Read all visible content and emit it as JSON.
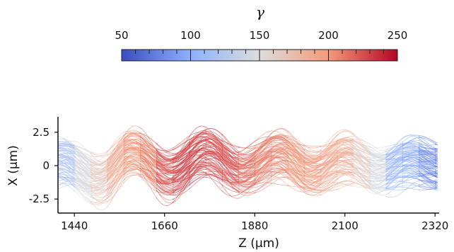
{
  "chart_data": {
    "type": "line",
    "title": "",
    "xlabel": "Z (μm)",
    "ylabel": "X (μm)",
    "xlim": [
      1400,
      2330
    ],
    "ylim": [
      -3.5,
      3.5
    ],
    "x_ticks": [
      1440,
      1660,
      1880,
      2100,
      2320
    ],
    "x_tick_labels": [
      "1440",
      "1660",
      "1880",
      "2100",
      "2320"
    ],
    "y_ticks": [
      2.5,
      0,
      -2.5
    ],
    "y_tick_labels": [
      "2.5",
      "0",
      "-2.5"
    ],
    "grid": false,
    "colorbar": {
      "label": "γ",
      "min": 50,
      "max": 250,
      "ticks": [
        50,
        100,
        150,
        200,
        250
      ],
      "tick_labels": [
        "50",
        "100",
        "150",
        "200",
        "250"
      ],
      "colormap": [
        "#3b4cc0",
        "#8db0fe",
        "#dddddd",
        "#f49a7b",
        "#b40426"
      ],
      "position": "top"
    },
    "trajectory_bundle": {
      "description_of_envelope": "many overlapping trajectories colored by γ",
      "center_points": [
        {
          "z": 1410,
          "x": 0.3
        },
        {
          "z": 1500,
          "x": -1.2
        },
        {
          "z": 1580,
          "x": 1.0
        },
        {
          "z": 1670,
          "x": -0.8
        },
        {
          "z": 1760,
          "x": 1.0
        },
        {
          "z": 1850,
          "x": -0.6
        },
        {
          "z": 1940,
          "x": 0.8
        },
        {
          "z": 2020,
          "x": -0.6
        },
        {
          "z": 2100,
          "x": 0.6
        },
        {
          "z": 2180,
          "x": -0.6
        },
        {
          "z": 2260,
          "x": 0.3
        },
        {
          "z": 2330,
          "x": -0.2
        }
      ],
      "gamma_along_z": [
        {
          "z": 1410,
          "gamma": 120
        },
        {
          "z": 1500,
          "gamma": 165
        },
        {
          "z": 1580,
          "gamma": 200
        },
        {
          "z": 1700,
          "gamma": 230
        },
        {
          "z": 1800,
          "gamma": 225
        },
        {
          "z": 1900,
          "gamma": 210
        },
        {
          "z": 2000,
          "gamma": 200
        },
        {
          "z": 2100,
          "gamma": 185
        },
        {
          "z": 2170,
          "gamma": 150
        },
        {
          "z": 2230,
          "gamma": 110
        },
        {
          "z": 2330,
          "gamma": 80
        }
      ]
    }
  }
}
